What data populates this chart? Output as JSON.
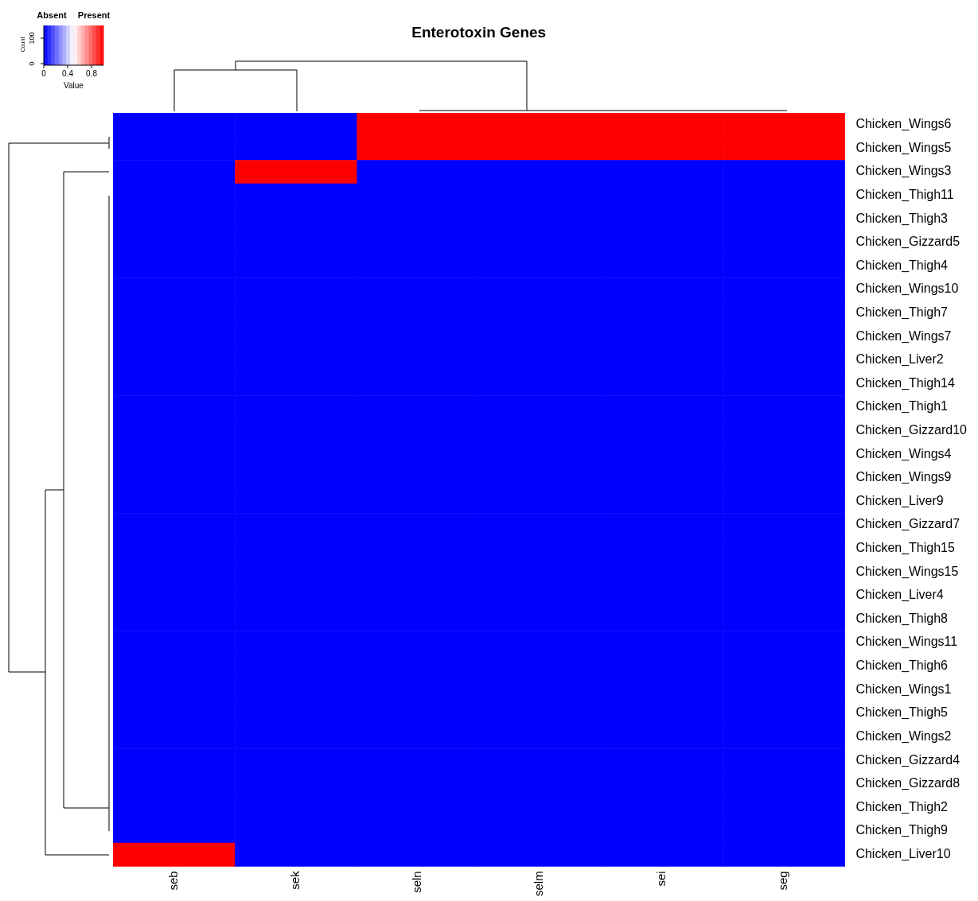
{
  "chart_data": {
    "type": "heatmap",
    "title": "Enterotoxin Genes",
    "clabel": "Value",
    "annotations": [
      "Absent",
      "Present",
      "Count",
      "0",
      "100"
    ],
    "categories": [
      "seb",
      "sek",
      "seln",
      "selm",
      "sei",
      "seg"
    ],
    "y_categories": [
      "Chicken_Wings6",
      "Chicken_Wings5",
      "Chicken_Wings3",
      "Chicken_Thigh11",
      "Chicken_Thigh3",
      "Chicken_Gizzard5",
      "Chicken_Thigh4",
      "Chicken_Wings10",
      "Chicken_Thigh7",
      "Chicken_Wings7",
      "Chicken_Liver2",
      "Chicken_Thigh14",
      "Chicken_Thigh1",
      "Chicken_Gizzard10",
      "Chicken_Wings4",
      "Chicken_Wings9",
      "Chicken_Liver9",
      "Chicken_Gizzard7",
      "Chicken_Thigh15",
      "Chicken_Wings15",
      "Chicken_Liver4",
      "Chicken_Thigh8",
      "Chicken_Wings11",
      "Chicken_Thigh6",
      "Chicken_Wings1",
      "Chicken_Thigh5",
      "Chicken_Wings2",
      "Chicken_Gizzard4",
      "Chicken_Gizzard8",
      "Chicken_Thigh2",
      "Chicken_Thigh9",
      "Chicken_Liver10"
    ],
    "cells": [
      [
        0,
        0,
        1,
        1,
        1,
        1
      ],
      [
        0,
        0,
        1,
        1,
        1,
        1
      ],
      [
        0,
        1,
        0,
        0,
        0,
        0
      ],
      [
        0,
        0,
        0,
        0,
        0,
        0
      ],
      [
        0,
        0,
        0,
        0,
        0,
        0
      ],
      [
        0,
        0,
        0,
        0,
        0,
        0
      ],
      [
        0,
        0,
        0,
        0,
        0,
        0
      ],
      [
        0,
        0,
        0,
        0,
        0,
        0
      ],
      [
        0,
        0,
        0,
        0,
        0,
        0
      ],
      [
        0,
        0,
        0,
        0,
        0,
        0
      ],
      [
        0,
        0,
        0,
        0,
        0,
        0
      ],
      [
        0,
        0,
        0,
        0,
        0,
        0
      ],
      [
        0,
        0,
        0,
        0,
        0,
        0
      ],
      [
        0,
        0,
        0,
        0,
        0,
        0
      ],
      [
        0,
        0,
        0,
        0,
        0,
        0
      ],
      [
        0,
        0,
        0,
        0,
        0,
        0
      ],
      [
        0,
        0,
        0,
        0,
        0,
        0
      ],
      [
        0,
        0,
        0,
        0,
        0,
        0
      ],
      [
        0,
        0,
        0,
        0,
        0,
        0
      ],
      [
        0,
        0,
        0,
        0,
        0,
        0
      ],
      [
        0,
        0,
        0,
        0,
        0,
        0
      ],
      [
        0,
        0,
        0,
        0,
        0,
        0
      ],
      [
        0,
        0,
        0,
        0,
        0,
        0
      ],
      [
        0,
        0,
        0,
        0,
        0,
        0
      ],
      [
        0,
        0,
        0,
        0,
        0,
        0
      ],
      [
        0,
        0,
        0,
        0,
        0,
        0
      ],
      [
        0,
        0,
        0,
        0,
        0,
        0
      ],
      [
        0,
        0,
        0,
        0,
        0,
        0
      ],
      [
        0,
        0,
        0,
        0,
        0,
        0
      ],
      [
        0,
        0,
        0,
        0,
        0,
        0
      ],
      [
        0,
        0,
        0,
        0,
        0,
        0
      ],
      [
        1,
        0,
        0,
        0,
        0,
        0
      ]
    ],
    "clim": [
      0,
      1
    ],
    "cticks": [
      0,
      0.4,
      0.8
    ]
  }
}
